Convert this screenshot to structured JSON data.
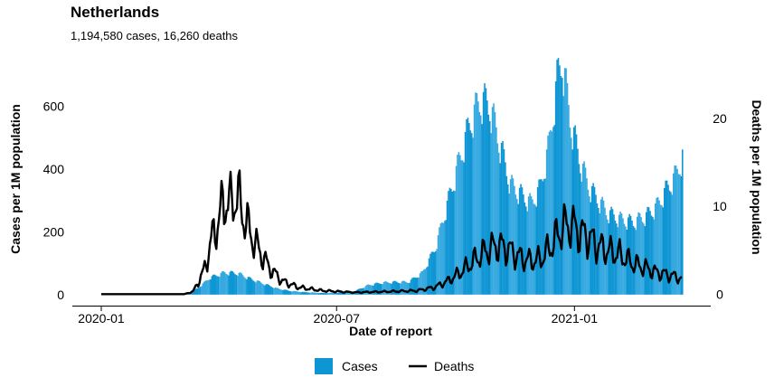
{
  "chart_data": {
    "type": "bar+line",
    "title": "Netherlands",
    "subtitle": "1,194,580 cases, 16,260 deaths",
    "xlabel": "Date of report",
    "ylabel_left": "Cases per 1M population",
    "ylabel_right": "Deaths per 1M population",
    "x_ticks": [
      "2020-01",
      "2020-07",
      "2021-01"
    ],
    "x_range": [
      "2020-01-01",
      "2021-03-25"
    ],
    "y_left_ticks": [
      0,
      200,
      400,
      600
    ],
    "y_left_range": [
      -35,
      765
    ],
    "y_right_ticks": [
      0,
      10,
      20
    ],
    "y_right_range": [
      -1.3,
      27.3
    ],
    "legend": {
      "position": "bottom",
      "entries": [
        "Cases",
        "Deaths"
      ]
    },
    "colors": {
      "cases": "#0e95d3",
      "cases_alt": "#36a9e0",
      "deaths": "#000000",
      "axis": "#000000"
    },
    "series": [
      {
        "name": "Cases",
        "kind": "bar",
        "keypoints": [
          [
            "2020-01-01",
            0
          ],
          [
            "2020-02-27",
            0
          ],
          [
            "2020-03-08",
            5
          ],
          [
            "2020-03-15",
            20
          ],
          [
            "2020-03-25",
            55
          ],
          [
            "2020-04-05",
            70
          ],
          [
            "2020-04-15",
            68
          ],
          [
            "2020-04-25",
            50
          ],
          [
            "2020-05-05",
            35
          ],
          [
            "2020-05-15",
            20
          ],
          [
            "2020-05-25",
            12
          ],
          [
            "2020-06-05",
            8
          ],
          [
            "2020-06-20",
            5
          ],
          [
            "2020-07-01",
            6
          ],
          [
            "2020-07-15",
            12
          ],
          [
            "2020-07-25",
            30
          ],
          [
            "2020-08-05",
            38
          ],
          [
            "2020-08-15",
            40
          ],
          [
            "2020-08-25",
            40
          ],
          [
            "2020-09-05",
            70
          ],
          [
            "2020-09-15",
            150
          ],
          [
            "2020-09-25",
            300
          ],
          [
            "2020-10-05",
            450
          ],
          [
            "2020-10-12",
            550
          ],
          [
            "2020-10-20",
            620
          ],
          [
            "2020-10-27",
            600
          ],
          [
            "2020-11-05",
            460
          ],
          [
            "2020-11-12",
            350
          ],
          [
            "2020-11-20",
            320
          ],
          [
            "2020-11-28",
            290
          ],
          [
            "2020-12-05",
            340
          ],
          [
            "2020-12-12",
            480
          ],
          [
            "2020-12-18",
            680
          ],
          [
            "2020-12-22",
            750
          ],
          [
            "2020-12-28",
            560
          ],
          [
            "2021-01-05",
            420
          ],
          [
            "2021-01-12",
            340
          ],
          [
            "2021-01-19",
            300
          ],
          [
            "2021-01-26",
            260
          ],
          [
            "2021-02-05",
            240
          ],
          [
            "2021-02-15",
            230
          ],
          [
            "2021-02-25",
            250
          ],
          [
            "2021-03-05",
            280
          ],
          [
            "2021-03-12",
            330
          ],
          [
            "2021-03-20",
            380
          ],
          [
            "2021-03-25",
            440
          ]
        ]
      },
      {
        "name": "Deaths",
        "kind": "line",
        "keypoints": [
          [
            "2020-01-01",
            0
          ],
          [
            "2020-03-05",
            0
          ],
          [
            "2020-03-12",
            0.3
          ],
          [
            "2020-03-20",
            2.5
          ],
          [
            "2020-03-27",
            6.5
          ],
          [
            "2020-04-02",
            9
          ],
          [
            "2020-04-06",
            11
          ],
          [
            "2020-04-10",
            10
          ],
          [
            "2020-04-14",
            11.5
          ],
          [
            "2020-04-19",
            9.5
          ],
          [
            "2020-04-25",
            7
          ],
          [
            "2020-05-02",
            5
          ],
          [
            "2020-05-10",
            3
          ],
          [
            "2020-05-20",
            1.5
          ],
          [
            "2020-06-01",
            0.8
          ],
          [
            "2020-06-20",
            0.4
          ],
          [
            "2020-07-15",
            0.2
          ],
          [
            "2020-08-10",
            0.3
          ],
          [
            "2020-09-01",
            0.4
          ],
          [
            "2020-09-15",
            0.8
          ],
          [
            "2020-09-25",
            1.5
          ],
          [
            "2020-10-05",
            2.5
          ],
          [
            "2020-10-15",
            3.8
          ],
          [
            "2020-10-25",
            5
          ],
          [
            "2020-11-03",
            5.6
          ],
          [
            "2020-11-12",
            5
          ],
          [
            "2020-11-20",
            4.2
          ],
          [
            "2020-11-28",
            3.8
          ],
          [
            "2020-12-06",
            4
          ],
          [
            "2020-12-14",
            5.5
          ],
          [
            "2020-12-22",
            7.5
          ],
          [
            "2020-12-29",
            8
          ],
          [
            "2021-01-05",
            7
          ],
          [
            "2021-01-12",
            6.5
          ],
          [
            "2021-01-19",
            5.5
          ],
          [
            "2021-01-26",
            5
          ],
          [
            "2021-02-05",
            4.5
          ],
          [
            "2021-02-15",
            3.5
          ],
          [
            "2021-02-25",
            3
          ],
          [
            "2021-03-05",
            2.5
          ],
          [
            "2021-03-15",
            2.2
          ],
          [
            "2021-03-25",
            1.8
          ]
        ]
      }
    ]
  }
}
